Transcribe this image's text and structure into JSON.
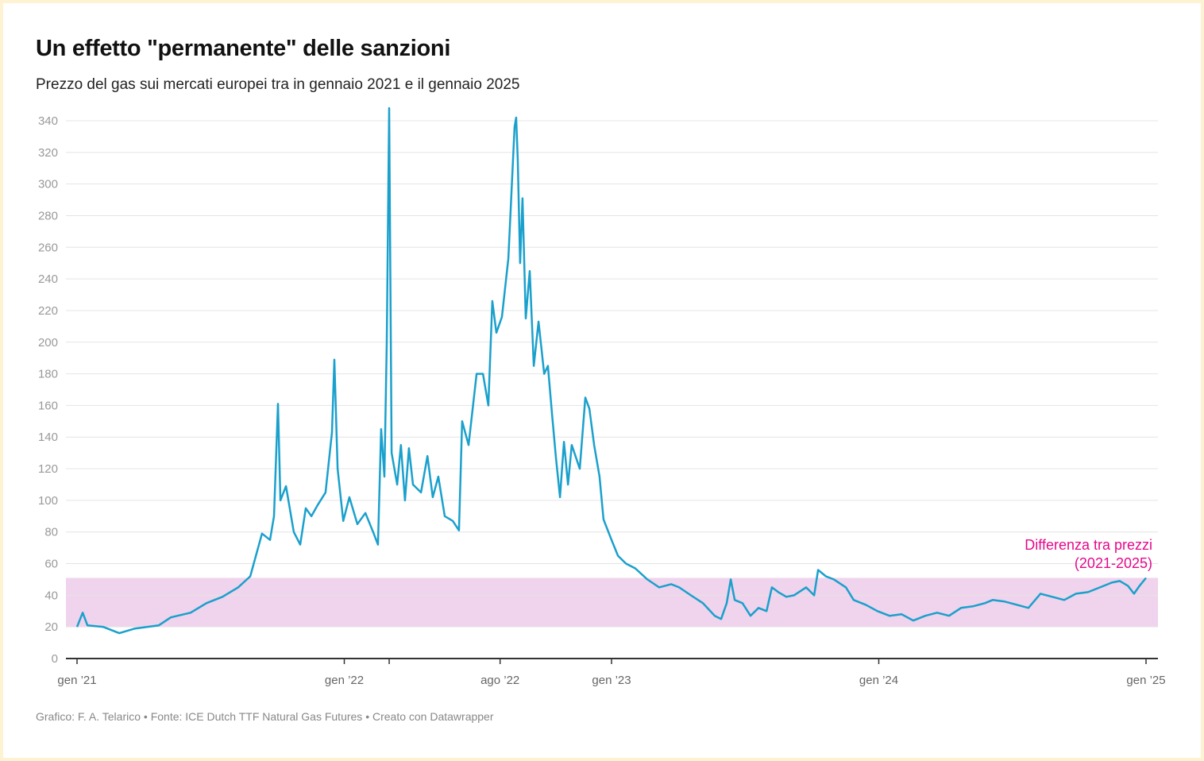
{
  "chart_data": {
    "type": "line",
    "title": "Un effetto \"permanente\" delle sanzioni",
    "subtitle": "Prezzo del gas sui mercati europei tra in gennaio 2021 e il gennaio 2025",
    "footer": "Grafico: F. A. Telarico • Fonte: ICE Dutch TTF Natural Gas Futures • Creato con Datawrapper",
    "xlabel": "",
    "ylabel": "",
    "x_unit": "decimal year",
    "xlim": [
      2021.0,
      2025.0
    ],
    "ylim": [
      0,
      340
    ],
    "grid": true,
    "y_ticks": [
      0,
      20,
      40,
      60,
      80,
      100,
      120,
      140,
      160,
      180,
      200,
      220,
      240,
      260,
      280,
      300,
      320,
      340
    ],
    "x_ticks": [
      {
        "x": 2021.0,
        "label": "gen ’21"
      },
      {
        "x": 2022.0,
        "label": "gen ’22"
      },
      {
        "x": 2022.168,
        "label": ""
      },
      {
        "x": 2022.583,
        "label": "ago ’22"
      },
      {
        "x": 2023.0,
        "label": "gen ’23"
      },
      {
        "x": 2024.0,
        "label": "gen ’24"
      },
      {
        "x": 2025.0,
        "label": "gen ’25"
      }
    ],
    "band": {
      "from": 20,
      "to": 51,
      "color": "#f0d3ec",
      "label_line1": "Differenza tra prezzi",
      "label_line2": "(2021-2025)",
      "label_color": "#e5098b"
    },
    "series": [
      {
        "name": "Prezzo del gas",
        "color": "#1aa0cc",
        "x": [
          2021.0,
          2021.021,
          2021.039,
          2021.098,
          2021.158,
          2021.217,
          2021.306,
          2021.351,
          2021.425,
          2021.484,
          2021.544,
          2021.603,
          2021.648,
          2021.692,
          2021.722,
          2021.737,
          2021.752,
          2021.761,
          2021.782,
          2021.811,
          2021.835,
          2021.856,
          2021.877,
          2021.9,
          2021.93,
          2021.954,
          2021.963,
          2021.975,
          2021.996,
          2022.019,
          2022.049,
          2022.079,
          2022.108,
          2022.126,
          2022.138,
          2022.15,
          2022.159,
          2022.168,
          2022.177,
          2022.198,
          2022.212,
          2022.227,
          2022.242,
          2022.257,
          2022.287,
          2022.311,
          2022.331,
          2022.352,
          2022.376,
          2022.406,
          2022.429,
          2022.441,
          2022.465,
          2022.495,
          2022.519,
          2022.539,
          2022.554,
          2022.569,
          2022.59,
          2022.614,
          2022.637,
          2022.643,
          2022.649,
          2022.658,
          2022.667,
          2022.679,
          2022.694,
          2022.709,
          2022.727,
          2022.748,
          2022.762,
          2022.777,
          2022.792,
          2022.807,
          2022.822,
          2022.837,
          2022.851,
          2022.881,
          2022.902,
          2022.917,
          2022.935,
          2022.955,
          2022.97,
          2023.0,
          2023.024,
          2023.054,
          2023.089,
          2023.134,
          2023.178,
          2023.223,
          2023.253,
          2023.297,
          2023.342,
          2023.386,
          2023.41,
          2023.431,
          2023.446,
          2023.461,
          2023.49,
          2023.52,
          2023.55,
          2023.58,
          2023.6,
          2023.624,
          2023.654,
          2023.683,
          2023.728,
          2023.758,
          2023.773,
          2023.802,
          2023.832,
          2023.877,
          2023.906,
          2023.951,
          2023.995,
          2024.04,
          2024.085,
          2024.129,
          2024.174,
          2024.218,
          2024.263,
          2024.308,
          2024.352,
          2024.397,
          2024.426,
          2024.471,
          2024.516,
          2024.56,
          2024.605,
          2024.649,
          2024.694,
          2024.738,
          2024.783,
          2024.828,
          2024.872,
          2024.902,
          2024.932,
          2024.955,
          2024.976,
          2025.0
        ],
        "values": [
          20,
          29,
          21,
          20,
          16,
          19,
          21,
          26,
          29,
          35,
          39,
          45,
          52,
          79,
          75,
          90,
          161,
          100,
          109,
          80,
          72,
          95,
          90,
          97,
          105,
          143,
          189,
          120,
          87,
          102,
          85,
          92,
          80,
          72,
          145,
          115,
          200,
          348,
          130,
          110,
          135,
          100,
          133,
          110,
          105,
          128,
          102,
          115,
          90,
          87,
          81,
          150,
          135,
          180,
          180,
          160,
          226,
          206,
          216,
          253,
          336,
          342,
          316,
          250,
          291,
          215,
          245,
          185,
          213,
          180,
          185,
          155,
          127,
          102,
          137,
          110,
          135,
          120,
          165,
          158,
          135,
          115,
          88,
          75,
          65,
          60,
          57,
          50,
          45,
          47,
          45,
          40,
          35,
          27,
          25,
          35,
          50,
          37,
          35,
          27,
          32,
          30,
          45,
          42,
          39,
          40,
          45,
          40,
          56,
          52,
          50,
          45,
          37,
          34,
          30,
          27,
          28,
          24,
          27,
          29,
          27,
          32,
          33,
          35,
          37,
          36,
          34,
          32,
          41,
          39,
          37,
          41,
          42,
          45,
          48,
          49,
          46,
          41,
          46,
          51
        ]
      }
    ]
  }
}
